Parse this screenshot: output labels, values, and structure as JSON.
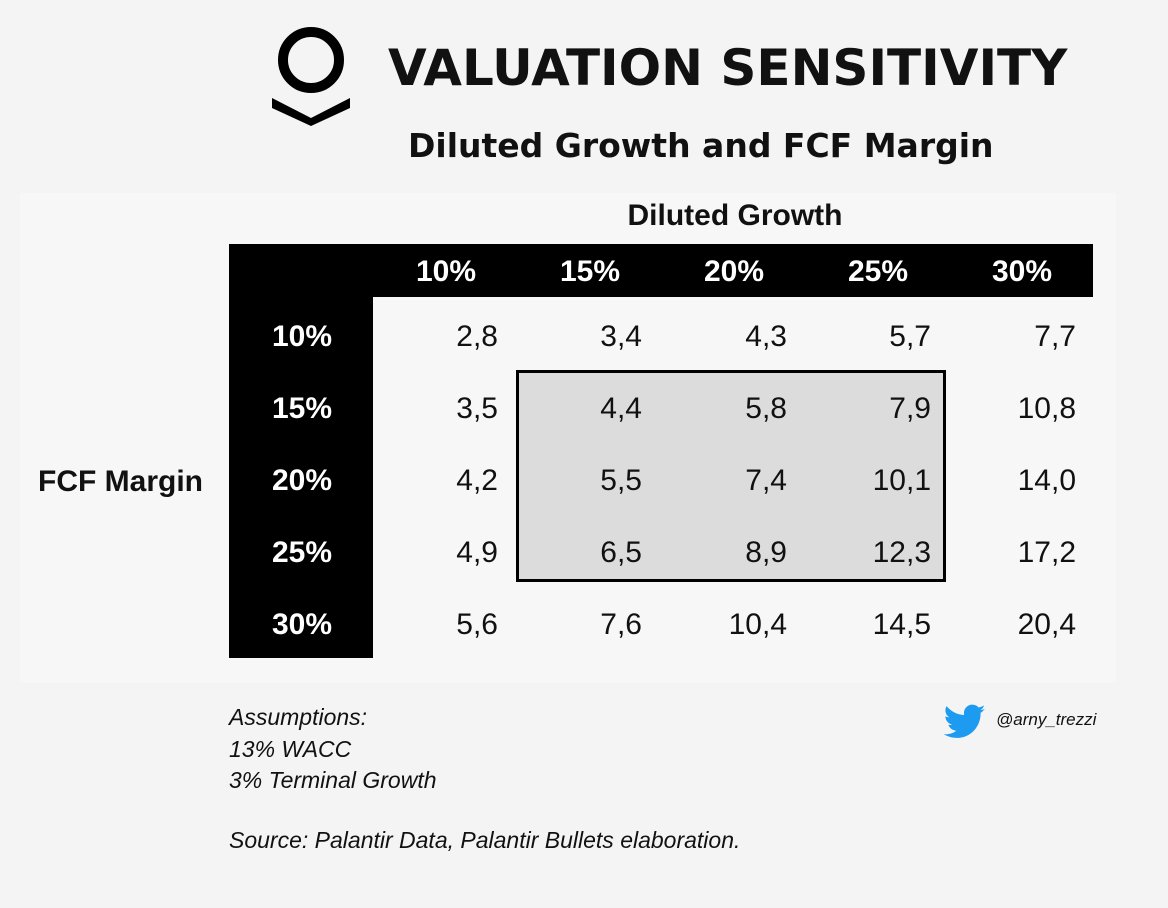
{
  "header": {
    "title": "VALUATION SENSITIVITY",
    "subtitle": "Diluted Growth and FCF Margin",
    "logo_icon": "palantir-logo-icon"
  },
  "chart_data": {
    "type": "table",
    "title": "VALUATION SENSITIVITY",
    "subtitle": "Diluted Growth and FCF Margin",
    "column_header_title": "Diluted Growth",
    "row_header_title": "FCF Margin",
    "columns": [
      "10%",
      "15%",
      "20%",
      "25%",
      "30%"
    ],
    "rows": [
      "10%",
      "15%",
      "20%",
      "25%",
      "30%"
    ],
    "values": [
      [
        "2,8",
        "3,4",
        "4,3",
        "5,7",
        "7,7"
      ],
      [
        "3,5",
        "4,4",
        "5,8",
        "7,9",
        "10,8"
      ],
      [
        "4,2",
        "5,5",
        "7,4",
        "10,1",
        "14,0"
      ],
      [
        "4,9",
        "6,5",
        "8,9",
        "12,3",
        "17,2"
      ],
      [
        "5,6",
        "7,6",
        "10,4",
        "14,5",
        "20,4"
      ]
    ],
    "highlighted_region": {
      "rows": [
        "15%",
        "20%",
        "25%"
      ],
      "columns": [
        "15%",
        "20%",
        "25%"
      ]
    }
  },
  "footer": {
    "assumptions_label": "Assumptions:",
    "assumption_wacc": "13% WACC",
    "assumption_terminal": "3% Terminal Growth",
    "source": "Source: Palantir Data, Palantir Bullets elaboration.",
    "twitter_handle": "@arny_trezzi",
    "twitter_icon": "twitter-bird-icon"
  },
  "colors": {
    "background": "#f4f4f4",
    "header_bar": "#000000",
    "highlight_fill": "#dcdcdc",
    "twitter_blue": "#1d9bf0"
  }
}
